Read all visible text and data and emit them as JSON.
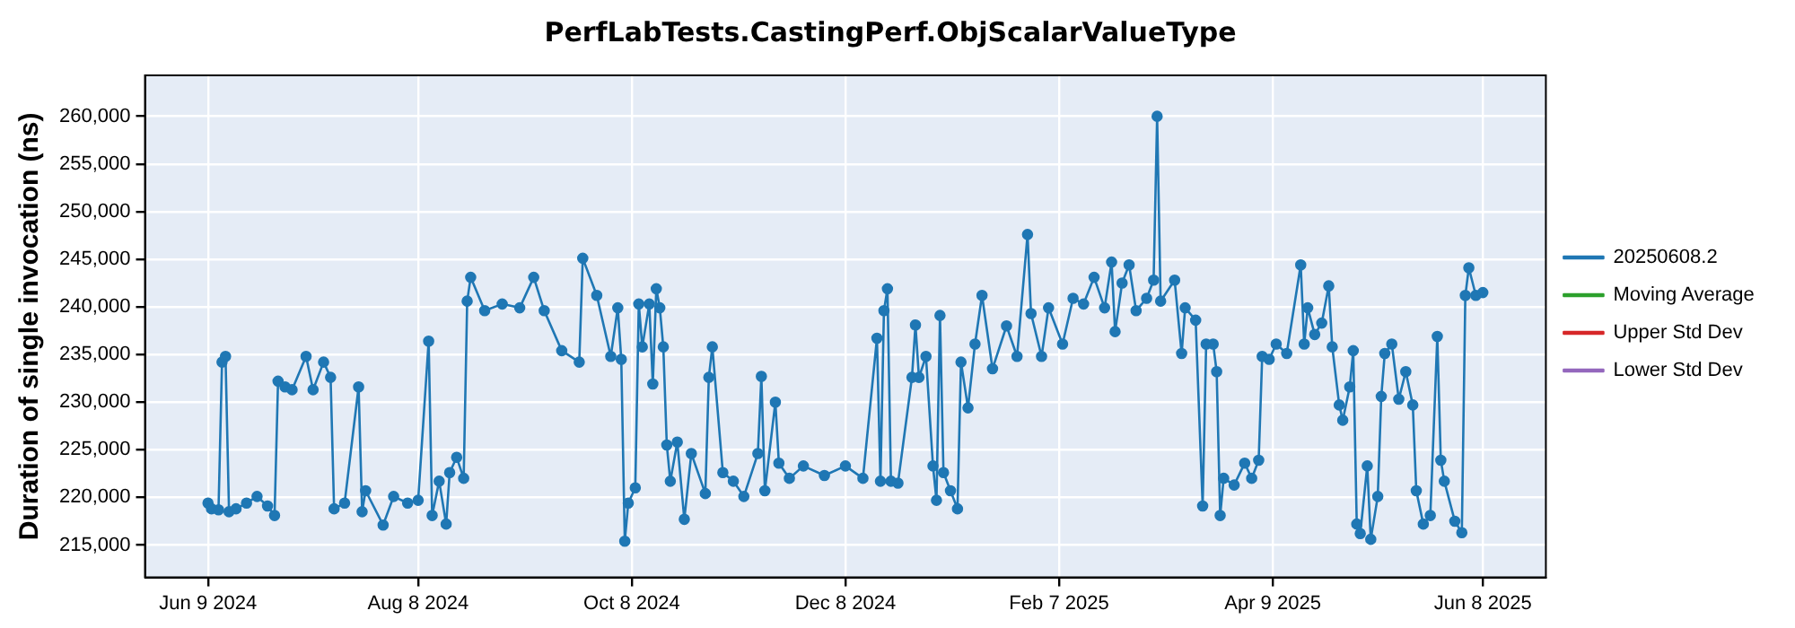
{
  "chart_data": {
    "type": "line",
    "title": "PerfLabTests.CastingPerf.ObjScalarValueType",
    "ylabel": "Duration of single invocation (ns)",
    "x": [
      "2024-06-09",
      "2024-06-10",
      "2024-06-12",
      "2024-06-13",
      "2024-06-14",
      "2024-06-15",
      "2024-06-17",
      "2024-06-20",
      "2024-06-23",
      "2024-06-26",
      "2024-06-28",
      "2024-06-29",
      "2024-07-01",
      "2024-07-03",
      "2024-07-07",
      "2024-07-09",
      "2024-07-12",
      "2024-07-14",
      "2024-07-15",
      "2024-07-18",
      "2024-07-22",
      "2024-07-23",
      "2024-07-24",
      "2024-07-29",
      "2024-08-01",
      "2024-08-05",
      "2024-08-08",
      "2024-08-11",
      "2024-08-12",
      "2024-08-14",
      "2024-08-16",
      "2024-08-17",
      "2024-08-19",
      "2024-08-21",
      "2024-08-22",
      "2024-08-23",
      "2024-08-27",
      "2024-09-01",
      "2024-09-06",
      "2024-09-10",
      "2024-09-13",
      "2024-09-18",
      "2024-09-23",
      "2024-09-24",
      "2024-09-28",
      "2024-10-02",
      "2024-10-04",
      "2024-10-05",
      "2024-10-06",
      "2024-10-07",
      "2024-10-09",
      "2024-10-10",
      "2024-10-11",
      "2024-10-13",
      "2024-10-14",
      "2024-10-15",
      "2024-10-16",
      "2024-10-17",
      "2024-10-18",
      "2024-10-19",
      "2024-10-21",
      "2024-10-23",
      "2024-10-25",
      "2024-10-29",
      "2024-10-30",
      "2024-10-31",
      "2024-11-03",
      "2024-11-06",
      "2024-11-09",
      "2024-11-13",
      "2024-11-14",
      "2024-11-15",
      "2024-11-18",
      "2024-11-19",
      "2024-11-22",
      "2024-11-26",
      "2024-12-02",
      "2024-12-08",
      "2024-12-13",
      "2024-12-17",
      "2024-12-18",
      "2024-12-19",
      "2024-12-20",
      "2024-12-21",
      "2024-12-23",
      "2024-12-27",
      "2024-12-28",
      "2024-12-29",
      "2024-12-31",
      "2025-01-02",
      "2025-01-03",
      "2025-01-04",
      "2025-01-05",
      "2025-01-07",
      "2025-01-09",
      "2025-01-10",
      "2025-01-12",
      "2025-01-14",
      "2025-01-16",
      "2025-01-19",
      "2025-01-23",
      "2025-01-26",
      "2025-01-29",
      "2025-01-30",
      "2025-02-02",
      "2025-02-04",
      "2025-02-08",
      "2025-02-11",
      "2025-02-14",
      "2025-02-17",
      "2025-02-20",
      "2025-02-22",
      "2025-02-23",
      "2025-02-25",
      "2025-02-27",
      "2025-03-01",
      "2025-03-04",
      "2025-03-06",
      "2025-03-07",
      "2025-03-08",
      "2025-03-12",
      "2025-03-14",
      "2025-03-15",
      "2025-03-18",
      "2025-03-20",
      "2025-03-21",
      "2025-03-23",
      "2025-03-24",
      "2025-03-25",
      "2025-03-26",
      "2025-03-29",
      "2025-04-01",
      "2025-04-03",
      "2025-04-05",
      "2025-04-06",
      "2025-04-08",
      "2025-04-10",
      "2025-04-13",
      "2025-04-17",
      "2025-04-18",
      "2025-04-19",
      "2025-04-21",
      "2025-04-23",
      "2025-04-25",
      "2025-04-26",
      "2025-04-28",
      "2025-04-29",
      "2025-05-01",
      "2025-05-02",
      "2025-05-03",
      "2025-05-04",
      "2025-05-06",
      "2025-05-07",
      "2025-05-09",
      "2025-05-10",
      "2025-05-11",
      "2025-05-13",
      "2025-05-15",
      "2025-05-17",
      "2025-05-19",
      "2025-05-20",
      "2025-05-22",
      "2025-05-24",
      "2025-05-26",
      "2025-05-27",
      "2025-05-28",
      "2025-05-31",
      "2025-06-02",
      "2025-06-03",
      "2025-06-04",
      "2025-06-06",
      "2025-06-08"
    ],
    "series": [
      {
        "name": "20250608.2",
        "color": "#1f77b4",
        "values": [
          219400,
          218800,
          218700,
          234200,
          234800,
          218500,
          218800,
          219400,
          220100,
          219100,
          218100,
          232200,
          231600,
          231300,
          234800,
          231300,
          234200,
          232600,
          218800,
          219400,
          231600,
          218500,
          220700,
          217100,
          220100,
          219400,
          219700,
          236400,
          218100,
          221700,
          217200,
          222600,
          224200,
          222000,
          240600,
          243100,
          239600,
          240300,
          239900,
          243100,
          239600,
          235400,
          234200,
          245100,
          241200,
          234800,
          239900,
          234500,
          215400,
          219400,
          221000,
          240300,
          235800,
          240300,
          231900,
          241900,
          239900,
          235800,
          225500,
          221700,
          225800,
          217700,
          224600,
          220400,
          232600,
          235800,
          222600,
          221700,
          220100,
          224600,
          232700,
          220700,
          230000,
          223600,
          222000,
          223300,
          222300,
          223300,
          222000,
          236700,
          221700,
          239600,
          241900,
          221700,
          221500,
          232600,
          238100,
          232600,
          234800,
          223300,
          219700,
          239100,
          222600,
          220700,
          218800,
          234200,
          229400,
          236100,
          241200,
          233500,
          238000,
          234800,
          247600,
          239300,
          234800,
          239900,
          236100,
          240900,
          240300,
          243100,
          239900,
          244700,
          237400,
          242500,
          244400,
          239600,
          240900,
          242800,
          260000,
          240600,
          242800,
          235100,
          239900,
          238600,
          219100,
          236100,
          236100,
          233200,
          218100,
          222000,
          221300,
          223600,
          222000,
          223900,
          234800,
          234500,
          236100,
          235100,
          244400,
          236100,
          239900,
          237100,
          238300,
          242200,
          235800,
          229700,
          228100,
          231600,
          235400,
          217200,
          216200,
          223300,
          215600,
          220100,
          230600,
          235100,
          236100,
          230300,
          233200,
          229700,
          220700,
          217200,
          218100,
          236900,
          223900,
          221700,
          217500,
          216300,
          241200,
          244100,
          241200,
          241500
        ]
      },
      {
        "name": "Moving Average",
        "color": "#2ca02c",
        "values": [
          null,
          null,
          null,
          null,
          null,
          null,
          null,
          null,
          null,
          null,
          null,
          null,
          null,
          null,
          null,
          null,
          null,
          null,
          null,
          null,
          null,
          null,
          null,
          null,
          null,
          null,
          null,
          null,
          null,
          null,
          null,
          null,
          null,
          null,
          null,
          null,
          null,
          null,
          null,
          null,
          null,
          null,
          null,
          null,
          null,
          null,
          null,
          null,
          null,
          null,
          null,
          null,
          null,
          null,
          null,
          null,
          null,
          null,
          null,
          null,
          null,
          null,
          null,
          null,
          null,
          null,
          null,
          null,
          null,
          null,
          null,
          null,
          null,
          null,
          null,
          null,
          null,
          null,
          null,
          null,
          null,
          null,
          null,
          null,
          null,
          null,
          null,
          null,
          null,
          null,
          null,
          null,
          null,
          null,
          null,
          null,
          null,
          null,
          null,
          null,
          null,
          null,
          null,
          null,
          null,
          null,
          null,
          null,
          null,
          null,
          null,
          null,
          null,
          null,
          null,
          null,
          null,
          null,
          null,
          null,
          null,
          null,
          null,
          null,
          null,
          null,
          null,
          null,
          null,
          null,
          null,
          null,
          null,
          null,
          null,
          null,
          null,
          null,
          null,
          null,
          null,
          null,
          null,
          null,
          null,
          null,
          null,
          null,
          null,
          null,
          null,
          null,
          null,
          null,
          null,
          null,
          null,
          null,
          null,
          null,
          null,
          null,
          null,
          null,
          null,
          null,
          null,
          null,
          null,
          null,
          null,
          null
        ]
      },
      {
        "name": "Upper Std Dev",
        "color": "#d62728",
        "values": [
          null,
          null,
          null,
          null,
          null,
          null,
          null,
          null,
          null,
          null,
          null,
          null,
          null,
          null,
          null,
          null,
          null,
          null,
          null,
          null,
          null,
          null,
          null,
          null,
          null,
          null,
          null,
          null,
          null,
          null,
          null,
          null,
          null,
          null,
          null,
          null,
          null,
          null,
          null,
          null,
          null,
          null,
          null,
          null,
          null,
          null,
          null,
          null,
          null,
          null,
          null,
          null,
          null,
          null,
          null,
          null,
          null,
          null,
          null,
          null,
          null,
          null,
          null,
          null,
          null,
          null,
          null,
          null,
          null,
          null,
          null,
          null,
          null,
          null,
          null,
          null,
          null,
          null,
          null,
          null,
          null,
          null,
          null,
          null,
          null,
          null,
          null,
          null,
          null,
          null,
          null,
          null,
          null,
          null,
          null,
          null,
          null,
          null,
          null,
          null,
          null,
          null,
          null,
          null,
          null,
          null,
          null,
          null,
          null,
          null,
          null,
          null,
          null,
          null,
          null,
          null,
          null,
          null,
          null,
          null,
          null,
          null,
          null,
          null,
          null,
          null,
          null,
          null,
          null,
          null,
          null,
          null,
          null,
          null,
          null,
          null,
          null,
          null,
          null,
          null,
          null,
          null,
          null,
          null,
          null,
          null,
          null,
          null,
          null,
          null,
          null,
          null,
          null,
          null,
          null,
          null,
          null,
          null,
          null,
          null,
          null,
          null,
          null,
          null,
          null,
          null,
          null,
          null,
          null,
          null,
          null,
          null
        ]
      },
      {
        "name": "Lower Std Dev",
        "color": "#9467bd",
        "values": [
          null,
          null,
          null,
          null,
          null,
          null,
          null,
          null,
          null,
          null,
          null,
          null,
          null,
          null,
          null,
          null,
          null,
          null,
          null,
          null,
          null,
          null,
          null,
          null,
          null,
          null,
          null,
          null,
          null,
          null,
          null,
          null,
          null,
          null,
          null,
          null,
          null,
          null,
          null,
          null,
          null,
          null,
          null,
          null,
          null,
          null,
          null,
          null,
          null,
          null,
          null,
          null,
          null,
          null,
          null,
          null,
          null,
          null,
          null,
          null,
          null,
          null,
          null,
          null,
          null,
          null,
          null,
          null,
          null,
          null,
          null,
          null,
          null,
          null,
          null,
          null,
          null,
          null,
          null,
          null,
          null,
          null,
          null,
          null,
          null,
          null,
          null,
          null,
          null,
          null,
          null,
          null,
          null,
          null,
          null,
          null,
          null,
          null,
          null,
          null,
          null,
          null,
          null,
          null,
          null,
          null,
          null,
          null,
          null,
          null,
          null,
          null,
          null,
          null,
          null,
          null,
          null,
          null,
          null,
          null,
          null,
          null,
          null,
          null,
          null,
          null,
          null,
          null,
          null,
          null,
          null,
          null,
          null,
          null,
          null,
          null,
          null,
          null,
          null,
          null,
          null,
          null,
          null,
          null,
          null,
          null,
          null,
          null,
          null,
          null,
          null,
          null,
          null,
          null,
          null,
          null,
          null,
          null,
          null,
          null,
          null,
          null,
          null,
          null,
          null,
          null,
          null,
          null,
          null,
          null,
          null,
          null
        ]
      }
    ],
    "xlim": [
      "2024-05-22",
      "2025-06-26"
    ],
    "xticks": [
      {
        "value": "2024-06-09",
        "label": "Jun 9 2024"
      },
      {
        "value": "2024-08-08",
        "label": "Aug 8 2024"
      },
      {
        "value": "2024-10-08",
        "label": "Oct 8 2024"
      },
      {
        "value": "2024-12-08",
        "label": "Dec 8 2024"
      },
      {
        "value": "2025-02-07",
        "label": "Feb 7 2025"
      },
      {
        "value": "2025-04-09",
        "label": "Apr 9 2025"
      },
      {
        "value": "2025-06-08",
        "label": "Jun 8 2025"
      }
    ],
    "ylim": [
      211600,
      264300
    ],
    "yticks": [
      {
        "value": 215000,
        "label": "215,000"
      },
      {
        "value": 220000,
        "label": "220,000"
      },
      {
        "value": 225000,
        "label": "225,000"
      },
      {
        "value": 230000,
        "label": "230,000"
      },
      {
        "value": 235000,
        "label": "235,000"
      },
      {
        "value": 240000,
        "label": "240,000"
      },
      {
        "value": 245000,
        "label": "245,000"
      },
      {
        "value": 250000,
        "label": "250,000"
      },
      {
        "value": 255000,
        "label": "255,000"
      },
      {
        "value": 260000,
        "label": "260,000"
      }
    ],
    "grid": true,
    "legend": "right",
    "marker": "circle",
    "line_style": "solid"
  }
}
